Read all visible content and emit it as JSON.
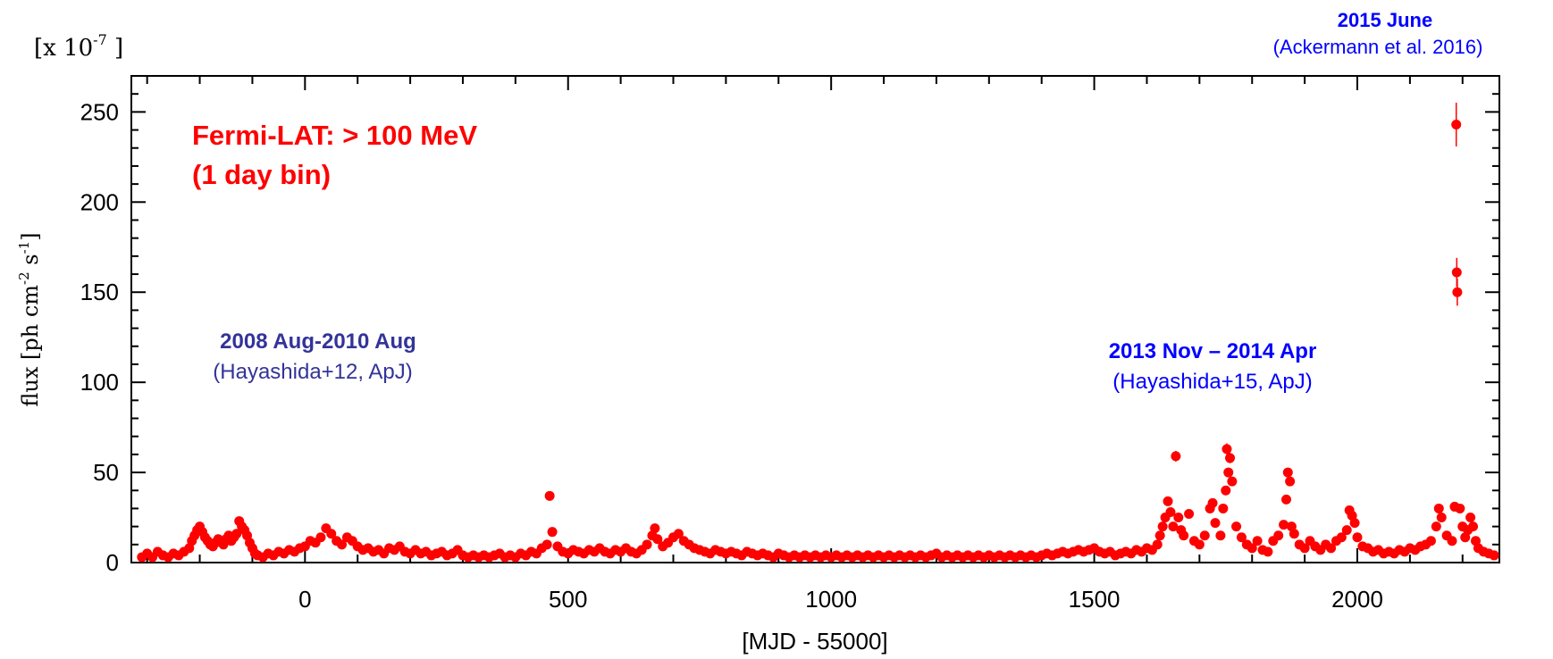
{
  "chart_data": {
    "type": "scatter",
    "xlabel": "[MJD - 55000]",
    "ylabel_main": "flux [ph cm",
    "ylabel_exp1": "-2",
    "ylabel_mid": " s",
    "ylabel_exp2": "-1",
    "ylabel_end": "]",
    "scale_label_prefix": "[x  10",
    "scale_label_exp": "-7",
    "scale_label_suffix": " ]",
    "xlim": [
      -330,
      2270
    ],
    "ylim": [
      0,
      270
    ],
    "x_ticks": [
      0,
      500,
      1000,
      1500,
      2000
    ],
    "x_tick_labels": [
      "0",
      "500",
      "1000",
      "1500",
      "2000"
    ],
    "y_ticks": [
      0,
      50,
      100,
      150,
      200,
      250
    ],
    "y_tick_labels": [
      "0",
      "50",
      "100",
      "150",
      "200",
      "250"
    ],
    "series": [
      {
        "color": "#ff0000",
        "points": [
          [
            -310,
            3
          ],
          [
            -300,
            5
          ],
          [
            -290,
            3
          ],
          [
            -280,
            6
          ],
          [
            -270,
            4
          ],
          [
            -260,
            3
          ],
          [
            -250,
            5
          ],
          [
            -240,
            4
          ],
          [
            -230,
            6
          ],
          [
            -220,
            8
          ],
          [
            -215,
            12
          ],
          [
            -210,
            15
          ],
          [
            -205,
            18
          ],
          [
            -200,
            20
          ],
          [
            -195,
            17
          ],
          [
            -190,
            14
          ],
          [
            -185,
            12
          ],
          [
            -180,
            10
          ],
          [
            -175,
            9
          ],
          [
            -170,
            11
          ],
          [
            -165,
            13
          ],
          [
            -160,
            12
          ],
          [
            -155,
            10
          ],
          [
            -150,
            13
          ],
          [
            -145,
            15
          ],
          [
            -140,
            12
          ],
          [
            -135,
            14
          ],
          [
            -130,
            16
          ],
          [
            -125,
            23
          ],
          [
            -120,
            20
          ],
          [
            -115,
            18
          ],
          [
            -110,
            15
          ],
          [
            -105,
            11
          ],
          [
            -100,
            8
          ],
          [
            -95,
            5
          ],
          [
            -90,
            4
          ],
          [
            -80,
            3
          ],
          [
            -70,
            5
          ],
          [
            -60,
            4
          ],
          [
            -50,
            6
          ],
          [
            -40,
            5
          ],
          [
            -30,
            7
          ],
          [
            -20,
            6
          ],
          [
            -10,
            8
          ],
          [
            0,
            9
          ],
          [
            10,
            12
          ],
          [
            20,
            11
          ],
          [
            30,
            14
          ],
          [
            40,
            19
          ],
          [
            50,
            16
          ],
          [
            60,
            12
          ],
          [
            70,
            10
          ],
          [
            80,
            14
          ],
          [
            90,
            12
          ],
          [
            100,
            9
          ],
          [
            110,
            7
          ],
          [
            120,
            8
          ],
          [
            130,
            6
          ],
          [
            140,
            7
          ],
          [
            150,
            5
          ],
          [
            160,
            8
          ],
          [
            170,
            7
          ],
          [
            180,
            9
          ],
          [
            190,
            6
          ],
          [
            200,
            5
          ],
          [
            210,
            7
          ],
          [
            220,
            5
          ],
          [
            230,
            6
          ],
          [
            240,
            4
          ],
          [
            250,
            5
          ],
          [
            260,
            6
          ],
          [
            270,
            4
          ],
          [
            280,
            5
          ],
          [
            290,
            7
          ],
          [
            300,
            4
          ],
          [
            310,
            3
          ],
          [
            320,
            4
          ],
          [
            330,
            3
          ],
          [
            340,
            4
          ],
          [
            350,
            3
          ],
          [
            360,
            4
          ],
          [
            370,
            5
          ],
          [
            380,
            3
          ],
          [
            390,
            4
          ],
          [
            400,
            3
          ],
          [
            410,
            5
          ],
          [
            420,
            4
          ],
          [
            430,
            6
          ],
          [
            440,
            5
          ],
          [
            450,
            8
          ],
          [
            460,
            10
          ],
          [
            465,
            37
          ],
          [
            470,
            17
          ],
          [
            480,
            9
          ],
          [
            490,
            6
          ],
          [
            500,
            5
          ],
          [
            510,
            7
          ],
          [
            520,
            6
          ],
          [
            530,
            5
          ],
          [
            540,
            7
          ],
          [
            550,
            6
          ],
          [
            560,
            8
          ],
          [
            570,
            6
          ],
          [
            580,
            5
          ],
          [
            590,
            7
          ],
          [
            600,
            6
          ],
          [
            610,
            8
          ],
          [
            620,
            6
          ],
          [
            630,
            5
          ],
          [
            640,
            7
          ],
          [
            650,
            10
          ],
          [
            660,
            15
          ],
          [
            665,
            19
          ],
          [
            670,
            13
          ],
          [
            680,
            9
          ],
          [
            690,
            11
          ],
          [
            700,
            14
          ],
          [
            710,
            16
          ],
          [
            720,
            12
          ],
          [
            730,
            10
          ],
          [
            740,
            8
          ],
          [
            750,
            7
          ],
          [
            760,
            6
          ],
          [
            770,
            5
          ],
          [
            780,
            7
          ],
          [
            790,
            6
          ],
          [
            800,
            5
          ],
          [
            810,
            6
          ],
          [
            820,
            5
          ],
          [
            830,
            4
          ],
          [
            840,
            6
          ],
          [
            850,
            5
          ],
          [
            860,
            4
          ],
          [
            870,
            5
          ],
          [
            880,
            4
          ],
          [
            890,
            3
          ],
          [
            900,
            5
          ],
          [
            910,
            4
          ],
          [
            920,
            3
          ],
          [
            930,
            4
          ],
          [
            940,
            3
          ],
          [
            950,
            4
          ],
          [
            960,
            3
          ],
          [
            970,
            4
          ],
          [
            980,
            3
          ],
          [
            990,
            4
          ],
          [
            1000,
            3
          ],
          [
            1010,
            4
          ],
          [
            1020,
            3
          ],
          [
            1030,
            4
          ],
          [
            1040,
            3
          ],
          [
            1050,
            4
          ],
          [
            1060,
            3
          ],
          [
            1070,
            4
          ],
          [
            1080,
            3
          ],
          [
            1090,
            4
          ],
          [
            1100,
            3
          ],
          [
            1110,
            4
          ],
          [
            1120,
            3
          ],
          [
            1130,
            4
          ],
          [
            1140,
            3
          ],
          [
            1150,
            4
          ],
          [
            1160,
            3
          ],
          [
            1170,
            4
          ],
          [
            1180,
            3
          ],
          [
            1190,
            4
          ],
          [
            1200,
            5
          ],
          [
            1210,
            3
          ],
          [
            1220,
            4
          ],
          [
            1230,
            3
          ],
          [
            1240,
            4
          ],
          [
            1250,
            3
          ],
          [
            1260,
            4
          ],
          [
            1270,
            3
          ],
          [
            1280,
            4
          ],
          [
            1290,
            3
          ],
          [
            1300,
            4
          ],
          [
            1310,
            3
          ],
          [
            1320,
            4
          ],
          [
            1330,
            3
          ],
          [
            1340,
            4
          ],
          [
            1350,
            3
          ],
          [
            1360,
            4
          ],
          [
            1370,
            3
          ],
          [
            1380,
            4
          ],
          [
            1390,
            3
          ],
          [
            1400,
            4
          ],
          [
            1410,
            5
          ],
          [
            1420,
            4
          ],
          [
            1430,
            5
          ],
          [
            1440,
            6
          ],
          [
            1450,
            5
          ],
          [
            1460,
            6
          ],
          [
            1470,
            7
          ],
          [
            1480,
            6
          ],
          [
            1490,
            7
          ],
          [
            1500,
            8
          ],
          [
            1510,
            6
          ],
          [
            1520,
            5
          ],
          [
            1530,
            6
          ],
          [
            1540,
            4
          ],
          [
            1550,
            5
          ],
          [
            1560,
            6
          ],
          [
            1570,
            5
          ],
          [
            1580,
            7
          ],
          [
            1590,
            6
          ],
          [
            1600,
            8
          ],
          [
            1610,
            7
          ],
          [
            1620,
            10
          ],
          [
            1625,
            15
          ],
          [
            1630,
            20
          ],
          [
            1635,
            25
          ],
          [
            1640,
            34
          ],
          [
            1645,
            28
          ],
          [
            1650,
            20
          ],
          [
            1655,
            59
          ],
          [
            1660,
            25
          ],
          [
            1665,
            18
          ],
          [
            1670,
            15
          ],
          [
            1680,
            27
          ],
          [
            1690,
            12
          ],
          [
            1700,
            10
          ],
          [
            1710,
            15
          ],
          [
            1720,
            30
          ],
          [
            1725,
            33
          ],
          [
            1730,
            22
          ],
          [
            1740,
            15
          ],
          [
            1745,
            30
          ],
          [
            1750,
            40
          ],
          [
            1752,
            63
          ],
          [
            1755,
            50
          ],
          [
            1758,
            58
          ],
          [
            1762,
            45
          ],
          [
            1770,
            20
          ],
          [
            1780,
            14
          ],
          [
            1790,
            10
          ],
          [
            1800,
            8
          ],
          [
            1810,
            12
          ],
          [
            1820,
            7
          ],
          [
            1830,
            6
          ],
          [
            1840,
            12
          ],
          [
            1850,
            15
          ],
          [
            1860,
            21
          ],
          [
            1865,
            35
          ],
          [
            1868,
            50
          ],
          [
            1872,
            45
          ],
          [
            1875,
            20
          ],
          [
            1880,
            16
          ],
          [
            1890,
            10
          ],
          [
            1900,
            8
          ],
          [
            1910,
            12
          ],
          [
            1920,
            9
          ],
          [
            1930,
            7
          ],
          [
            1940,
            10
          ],
          [
            1950,
            8
          ],
          [
            1960,
            12
          ],
          [
            1970,
            14
          ],
          [
            1980,
            18
          ],
          [
            1985,
            29
          ],
          [
            1990,
            26
          ],
          [
            1995,
            22
          ],
          [
            2000,
            14
          ],
          [
            2010,
            9
          ],
          [
            2020,
            8
          ],
          [
            2030,
            6
          ],
          [
            2040,
            7
          ],
          [
            2050,
            5
          ],
          [
            2060,
            6
          ],
          [
            2070,
            5
          ],
          [
            2080,
            7
          ],
          [
            2090,
            6
          ],
          [
            2100,
            8
          ],
          [
            2110,
            7
          ],
          [
            2120,
            9
          ],
          [
            2130,
            10
          ],
          [
            2140,
            12
          ],
          [
            2150,
            20
          ],
          [
            2155,
            30
          ],
          [
            2160,
            25
          ],
          [
            2170,
            15
          ],
          [
            2180,
            12
          ],
          [
            2185,
            31
          ],
          [
            2188,
            243
          ],
          [
            2189,
            161
          ],
          [
            2190,
            150
          ],
          [
            2195,
            30
          ],
          [
            2200,
            20
          ],
          [
            2205,
            14
          ],
          [
            2210,
            18
          ],
          [
            2215,
            25
          ],
          [
            2220,
            20
          ],
          [
            2225,
            12
          ],
          [
            2230,
            8
          ],
          [
            2240,
            6
          ],
          [
            2250,
            5
          ],
          [
            2260,
            4
          ]
        ]
      }
    ],
    "annotations": {
      "fermi_line1": "Fermi-LAT: > 100 MeV",
      "fermi_line2": "(1 day bin)",
      "era1_title": "2008 Aug-2010 Aug",
      "era1_ref": "(Hayashida+12, ApJ)",
      "era2_title": "2013 Nov – 2014 Apr",
      "era2_ref": "(Hayashida+15, ApJ)",
      "era3_title": "2015 June",
      "era3_ref": "(Ackermann et al. 2016)"
    },
    "colors": {
      "data": "#ff0000",
      "era1": "#333399",
      "era2": "#0000ff",
      "axis": "#000000"
    }
  }
}
